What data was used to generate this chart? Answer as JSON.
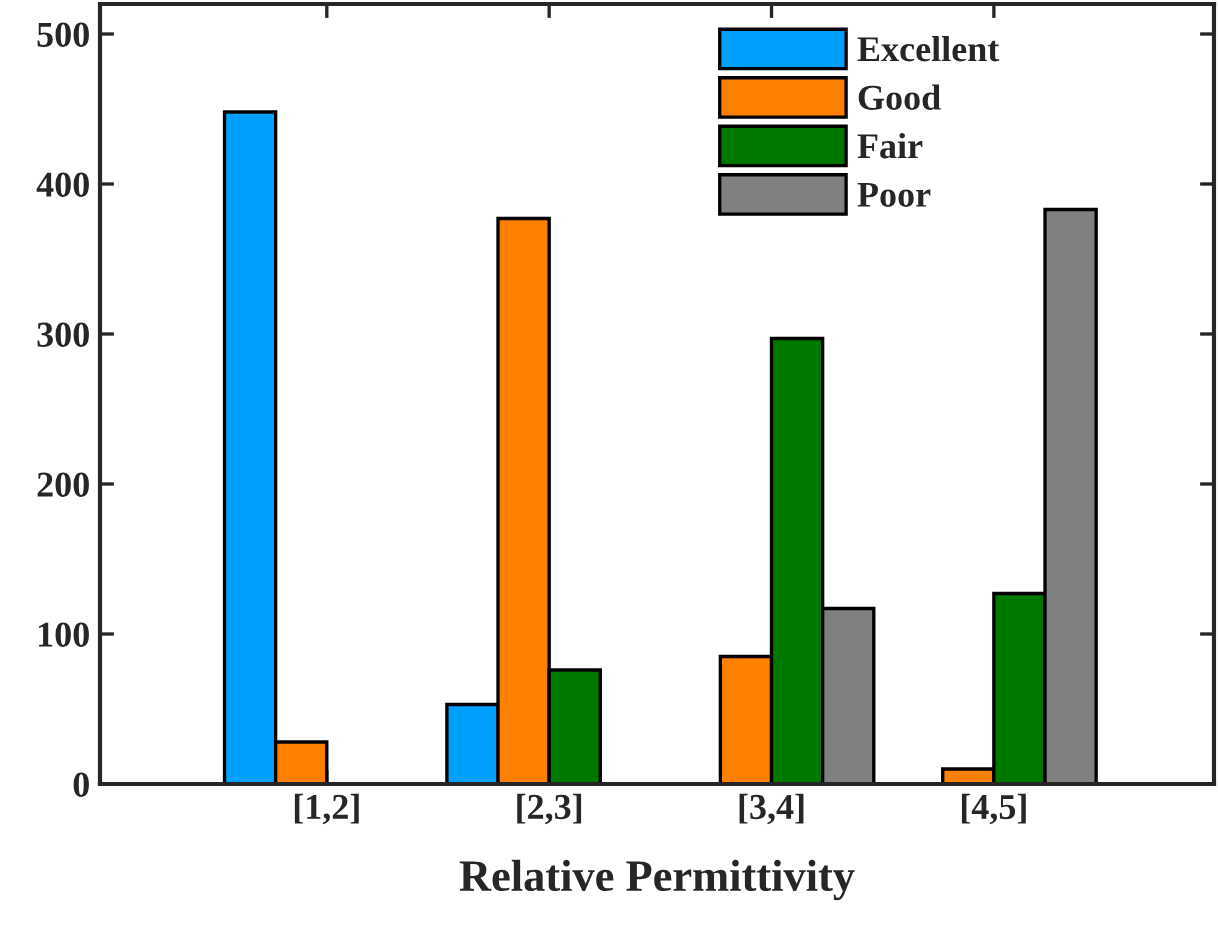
{
  "chart_data": {
    "type": "bar",
    "xlabel": "Relative Permittivity",
    "categories": [
      "[1,2]",
      "[2,3]",
      "[3,4]",
      "[4,5]"
    ],
    "series": [
      {
        "name": "Excellent",
        "color": "#00a0ff",
        "values": [
          448,
          53,
          null,
          null
        ]
      },
      {
        "name": "Good",
        "color": "#ff8000",
        "values": [
          28,
          377,
          85,
          10
        ]
      },
      {
        "name": "Fair",
        "color": "#007800",
        "values": [
          null,
          76,
          297,
          127
        ]
      },
      {
        "name": "Poor",
        "color": "#808080",
        "values": [
          null,
          null,
          117,
          383
        ]
      }
    ],
    "ylim": [
      0,
      520
    ],
    "yticks": [
      0,
      100,
      200,
      300,
      400,
      500
    ],
    "grid": false,
    "legend": "top right"
  }
}
